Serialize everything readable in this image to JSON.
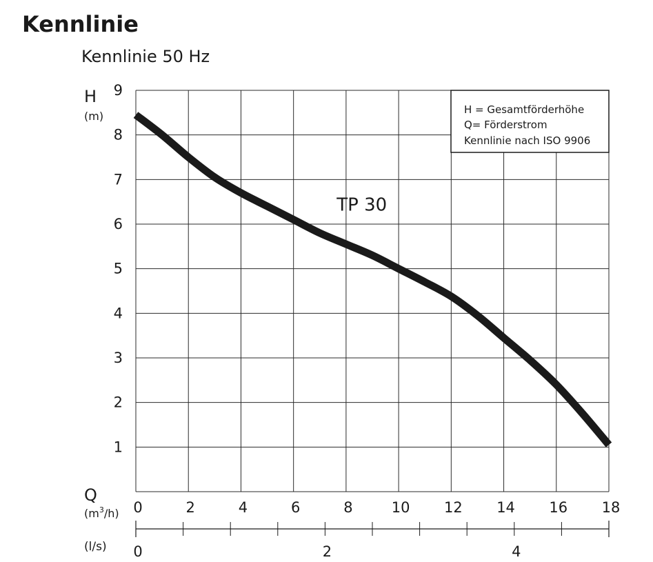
{
  "header": {
    "title": "Kennlinie",
    "subtitle": "Kennlinie 50 Hz"
  },
  "chart_data": {
    "type": "line",
    "y_axis": {
      "label": "H",
      "unit": "(m)",
      "ylim": [
        0,
        9
      ],
      "ticks": [
        "1",
        "2",
        "3",
        "4",
        "5",
        "6",
        "7",
        "8",
        "9"
      ]
    },
    "x_axis_primary": {
      "label": "Q",
      "unit_prefix": "(m",
      "unit_sup": "3",
      "unit_suffix": "/h)",
      "xlim": [
        0,
        18
      ],
      "ticks": [
        "0",
        "2",
        "4",
        "6",
        "8",
        "10",
        "12",
        "14",
        "16",
        "18"
      ]
    },
    "x_axis_secondary": {
      "unit": "(l/s)",
      "ticks": [
        {
          "label": "0",
          "value": 0
        },
        {
          "label": "2",
          "value": 2
        },
        {
          "label": "4",
          "value": 4
        }
      ]
    },
    "legend": {
      "placement": "top-right",
      "lines": [
        "H = Gesamtförderhöhe",
        "Q= Förderstrom",
        "Kennlinie nach ISO 9906"
      ]
    },
    "grid": true,
    "series": [
      {
        "name": "TP 30",
        "label_at": {
          "x": 8.6,
          "y": 6.3
        },
        "x": [
          0,
          1,
          2,
          3,
          4,
          5,
          6,
          7,
          8,
          9,
          10,
          11,
          12,
          13,
          14,
          15,
          16,
          17,
          18
        ],
        "y": [
          8.45,
          8.0,
          7.5,
          7.05,
          6.7,
          6.4,
          6.1,
          5.8,
          5.55,
          5.3,
          5.0,
          4.7,
          4.38,
          3.95,
          3.45,
          2.95,
          2.4,
          1.75,
          1.05
        ]
      }
    ]
  }
}
